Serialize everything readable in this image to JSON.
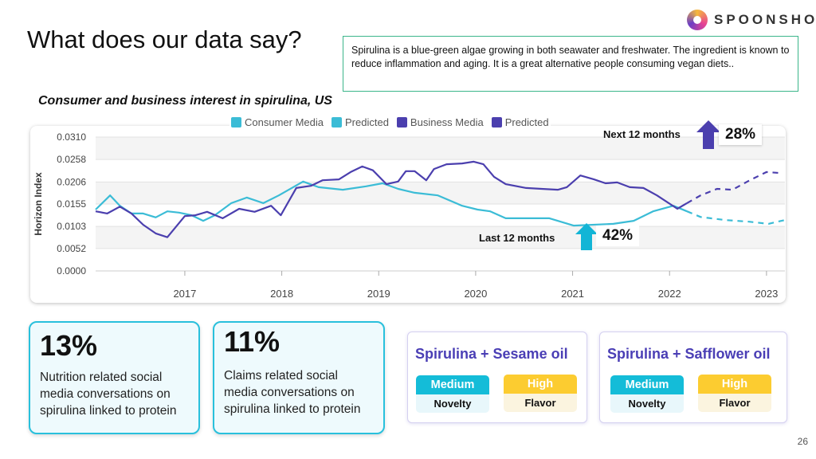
{
  "header": {
    "title": "What does our data say?",
    "logo_text": "SPOONSHOT",
    "description": "Spirulina is a blue-green algae growing in both seawater and freshwater. The ingredient is known to reduce inflammation and aging. It is a great alternative people consuming vegan diets.."
  },
  "subtitle": "Consumer and business interest in spirulina, US",
  "annotations": {
    "next_label": "Next 12 months",
    "next_value": "28%",
    "last_label": "Last 12 months",
    "last_value": "42%"
  },
  "colors": {
    "consumer": "#3bbcd6",
    "business": "#4b3fae"
  },
  "chart_data": {
    "type": "line",
    "title": "Consumer and business interest in spirulina, US",
    "xlabel": "",
    "ylabel": "Horizon Index",
    "ylim": [
      0,
      0.031
    ],
    "xlim": [
      2016.08,
      2023.19
    ],
    "yticks": [
      "0.0310",
      "0.0258",
      "0.0206",
      "0.0155",
      "0.0103",
      "0.0052",
      "0.0000"
    ],
    "ytick_values": [
      0.031,
      0.0258,
      0.0206,
      0.0155,
      0.0103,
      0.0052,
      0
    ],
    "xticks": [
      "2017",
      "2018",
      "2019",
      "2020",
      "2021",
      "2022",
      "2023"
    ],
    "xtick_values": [
      2017,
      2018,
      2019,
      2020,
      2021,
      2022,
      2023
    ],
    "legend": [
      "Consumer Media",
      "Predicted",
      "Business Media",
      "Predicted"
    ],
    "legend_position": "top-center",
    "grid": true,
    "series": [
      {
        "name": "Consumer Media",
        "style": "solid",
        "color": "#3bbcd6",
        "x": [
          2016.08,
          2016.23,
          2016.33,
          2016.45,
          2016.57,
          2016.7,
          2016.82,
          2016.94,
          2017.07,
          2017.19,
          2017.31,
          2017.48,
          2017.64,
          2017.81,
          2017.97,
          2018.22,
          2018.38,
          2018.63,
          2018.87,
          2019.04,
          2019.2,
          2019.37,
          2019.61,
          2019.86,
          2020.02,
          2020.15,
          2020.31,
          2020.52,
          2020.76,
          2021.01,
          2021.42,
          2021.63,
          2021.83,
          2022.04,
          2022.18
        ],
        "y": [
          0.0142,
          0.0175,
          0.0151,
          0.0133,
          0.0133,
          0.0124,
          0.0138,
          0.0135,
          0.0129,
          0.0116,
          0.0129,
          0.0157,
          0.017,
          0.0157,
          0.0175,
          0.0207,
          0.0194,
          0.0188,
          0.0196,
          0.0203,
          0.019,
          0.0181,
          0.0175,
          0.0151,
          0.0142,
          0.0138,
          0.0122,
          0.0122,
          0.0122,
          0.0105,
          0.0109,
          0.0116,
          0.0138,
          0.0151,
          0.0138
        ]
      },
      {
        "name": "Predicted (Consumer)",
        "style": "dashed",
        "color": "#3bbcd6",
        "x": [
          2022.18,
          2022.32,
          2022.57,
          2022.82,
          2023.02,
          2023.19
        ],
        "y": [
          0.0138,
          0.0125,
          0.0118,
          0.0114,
          0.0109,
          0.0118
        ]
      },
      {
        "name": "Business Media",
        "style": "solid",
        "color": "#4b3fae",
        "x": [
          2016.08,
          2016.2,
          2016.33,
          2016.45,
          2016.57,
          2016.7,
          2016.82,
          2017.0,
          2017.11,
          2017.23,
          2017.39,
          2017.56,
          2017.72,
          2017.89,
          2017.99,
          2018.15,
          2018.3,
          2018.42,
          2018.59,
          2018.71,
          2018.83,
          2018.94,
          2019.08,
          2019.2,
          2019.28,
          2019.37,
          2019.49,
          2019.57,
          2019.7,
          2019.86,
          2019.98,
          2020.08,
          2020.19,
          2020.31,
          2020.52,
          2020.68,
          2020.85,
          2020.94,
          2021.08,
          2021.22,
          2021.34,
          2021.46,
          2021.59,
          2021.73,
          2021.87,
          2022.08,
          2022.18
        ],
        "y": [
          0.0138,
          0.0133,
          0.0149,
          0.0133,
          0.0107,
          0.0087,
          0.0078,
          0.0127,
          0.0129,
          0.0137,
          0.0122,
          0.0144,
          0.0137,
          0.0151,
          0.0129,
          0.0192,
          0.0197,
          0.021,
          0.0212,
          0.0229,
          0.0242,
          0.0233,
          0.0201,
          0.0207,
          0.0231,
          0.0231,
          0.021,
          0.0236,
          0.0247,
          0.0249,
          0.0253,
          0.0247,
          0.0218,
          0.0201,
          0.0192,
          0.019,
          0.0188,
          0.0194,
          0.0221,
          0.0212,
          0.0203,
          0.0205,
          0.0194,
          0.0192,
          0.0175,
          0.0144,
          0.0157
        ]
      },
      {
        "name": "Predicted (Business)",
        "style": "dashed",
        "color": "#4b3fae",
        "x": [
          2022.18,
          2022.32,
          2022.49,
          2022.65,
          2022.82,
          2023.0,
          2023.13
        ],
        "y": [
          0.0157,
          0.0175,
          0.019,
          0.0188,
          0.0209,
          0.0229,
          0.0227
        ]
      }
    ]
  },
  "stats": [
    {
      "value": "13%",
      "text": "Nutrition related social media conversations on spirulina linked to protein"
    },
    {
      "value": "11%",
      "text": "Claims related social media conversations on spirulina linked to protein"
    }
  ],
  "combos": [
    {
      "title": "Spirulina + Sesame oil",
      "novelty_level": "Medium",
      "novelty_label": "Novelty",
      "flavor_level": "High",
      "flavor_label": "Flavor"
    },
    {
      "title": "Spirulina + Safflower oil",
      "novelty_level": "Medium",
      "novelty_label": "Novelty",
      "flavor_level": "High",
      "flavor_label": "Flavor"
    }
  ],
  "page_number": "26"
}
